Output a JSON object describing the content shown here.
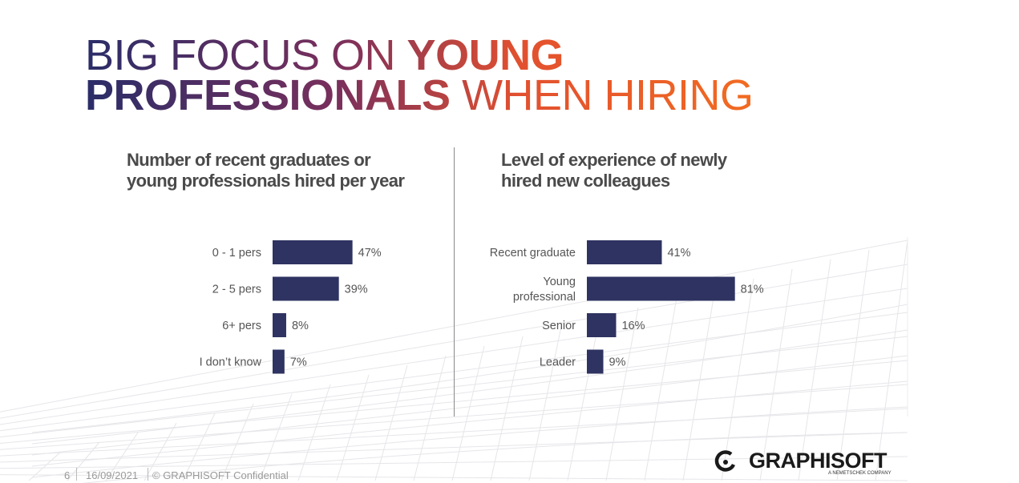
{
  "slide": {
    "title_part1": "BIG FOCUS ON ",
    "title_part2": "YOUNG",
    "title_part3": "PROFESSIONALS",
    "title_part4": " WHEN HIRING"
  },
  "colors": {
    "bar": "#2e3361",
    "label": "#555555",
    "value": "#555555"
  },
  "chart_data": [
    {
      "type": "bar",
      "orientation": "horizontal",
      "title": "Number of recent graduates or\nyoung professionals hired per year",
      "categories": [
        "0 - 1 pers",
        "2 - 5 pers",
        "6+ pers",
        "I don’t know"
      ],
      "values": [
        47,
        39,
        8,
        7
      ],
      "value_labels": [
        "47%",
        "39%",
        "8%",
        "7%"
      ],
      "unit": "%"
    },
    {
      "type": "bar",
      "orientation": "horizontal",
      "title": "Level of experience of newly\nhired  new colleagues",
      "categories": [
        "Recent graduate",
        "Young\nprofessional",
        "Senior",
        "Leader"
      ],
      "values": [
        41,
        81,
        16,
        9
      ],
      "value_labels": [
        "41%",
        "81%",
        "16%",
        "9%"
      ],
      "unit": "%"
    }
  ],
  "footer": {
    "page": "6",
    "date": "16/09/2021",
    "confidential": "© GRAPHISOFT Confidential"
  },
  "logo": {
    "name": "GRAPHISOFT",
    "tagline": "A NEMETSCHEK COMPANY"
  }
}
